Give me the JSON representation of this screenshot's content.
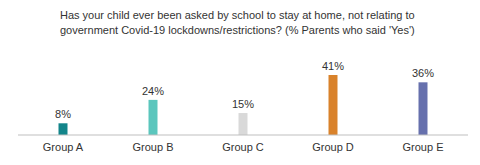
{
  "chart_data": {
    "type": "bar",
    "title": "Has your child ever been asked by school to stay at home, not relating to government Covid-19 lockdowns/restrictions? (% Parents who said 'Yes')",
    "categories": [
      "Group A",
      "Group B",
      "Group C",
      "Group D",
      "Group E"
    ],
    "values": [
      8,
      24,
      15,
      41,
      36
    ],
    "value_labels": [
      "8%",
      "24%",
      "15%",
      "41%",
      "36%"
    ],
    "colors": [
      "#13858a",
      "#5bc6bd",
      "#d9d9d9",
      "#d9822b",
      "#6670ad"
    ],
    "data_labels": true,
    "tick_labels": "x",
    "grid": false
  }
}
